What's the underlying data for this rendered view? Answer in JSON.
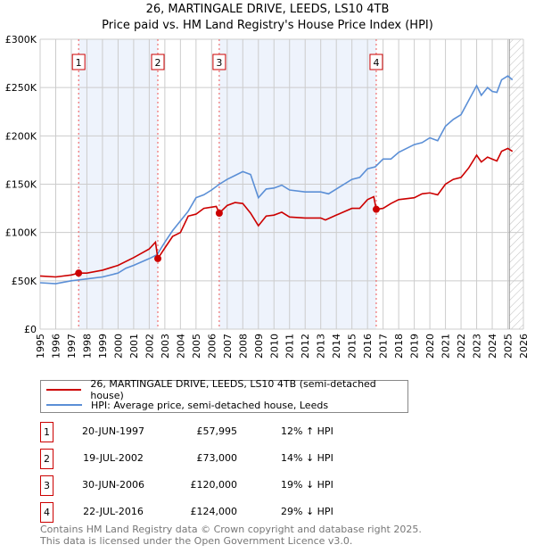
{
  "chart_data": {
    "type": "line",
    "title": "26, MARTINGALE DRIVE, LEEDS, LS10 4TB",
    "subtitle": "Price paid vs. HM Land Registry's House Price Index (HPI)",
    "xlim": [
      1995,
      2026
    ],
    "ylim": [
      0,
      300000
    ],
    "x_ticks": [
      "1995",
      "1996",
      "1997",
      "1998",
      "1999",
      "2000",
      "2001",
      "2002",
      "2003",
      "2004",
      "2005",
      "2006",
      "2007",
      "2008",
      "2009",
      "2010",
      "2011",
      "2012",
      "2013",
      "2014",
      "2015",
      "2016",
      "2017",
      "2018",
      "2019",
      "2020",
      "2021",
      "2022",
      "2023",
      "2024",
      "2025",
      "2026"
    ],
    "y_ticks": [
      {
        "v": 0,
        "label": "£0"
      },
      {
        "v": 50000,
        "label": "£50K"
      },
      {
        "v": 100000,
        "label": "£100K"
      },
      {
        "v": 150000,
        "label": "£150K"
      },
      {
        "v": 200000,
        "label": "£200K"
      },
      {
        "v": 250000,
        "label": "£250K"
      },
      {
        "v": 300000,
        "label": "£300K"
      }
    ],
    "grid": true,
    "shaded_ranges": [
      [
        1997.47,
        2002.55
      ],
      [
        2006.49,
        2016.56
      ]
    ],
    "hatched_from": 2025.1,
    "series": [
      {
        "name": "26, MARTINGALE DRIVE, LEEDS, LS10 4TB (semi-detached house)",
        "color": "#cc0000",
        "x": [
          1995,
          1996,
          1997,
          1997.47,
          1998,
          1999,
          2000,
          2001,
          2002,
          2002.4,
          2002.55,
          2003,
          2003.5,
          2004,
          2004.5,
          2005,
          2005.5,
          2006.3,
          2006.49,
          2007,
          2007.5,
          2008,
          2008.5,
          2009,
          2009.5,
          2010,
          2010.5,
          2011,
          2012,
          2013,
          2013.3,
          2014,
          2015,
          2015.5,
          2016,
          2016.4,
          2016.56,
          2017,
          2017.5,
          2018,
          2019,
          2019.5,
          2020,
          2020.5,
          2021,
          2021.5,
          2022,
          2022.5,
          2023,
          2023.3,
          2023.7,
          2024,
          2024.3,
          2024.6,
          2025,
          2025.3
        ],
        "y": [
          55000,
          54000,
          56000,
          58000,
          58000,
          61000,
          66000,
          74000,
          83000,
          90000,
          73000,
          84000,
          96000,
          100000,
          117000,
          119000,
          125000,
          127000,
          120000,
          128000,
          131000,
          130000,
          120000,
          107000,
          117000,
          118000,
          121000,
          116000,
          115000,
          115000,
          113000,
          118000,
          125000,
          125000,
          134000,
          137000,
          124000,
          125000,
          130000,
          134000,
          136000,
          140000,
          141000,
          139000,
          150000,
          155000,
          157000,
          167000,
          180000,
          173000,
          178000,
          176000,
          174000,
          184000,
          187000,
          184000
        ]
      },
      {
        "name": "HPI: Average price, semi-detached house, Leeds",
        "color": "#5b8fd6",
        "x": [
          1995,
          1996,
          1997,
          1997.5,
          1998,
          1999,
          2000,
          2000.5,
          2001,
          2002,
          2002.5,
          2003,
          2003.5,
          2004,
          2004.5,
          2005,
          2005.5,
          2006,
          2006.5,
          2007,
          2007.5,
          2008,
          2008.5,
          2009,
          2009.5,
          2010,
          2010.5,
          2011,
          2012,
          2013,
          2013.5,
          2014,
          2015,
          2015.5,
          2016,
          2016.5,
          2017,
          2017.5,
          2018,
          2019,
          2019.5,
          2020,
          2020.5,
          2021,
          2021.5,
          2022,
          2022.5,
          2023,
          2023.3,
          2023.7,
          2024,
          2024.3,
          2024.6,
          2025,
          2025.3
        ],
        "y": [
          48000,
          47000,
          50000,
          51000,
          52000,
          54000,
          58000,
          63000,
          66000,
          73000,
          77000,
          90000,
          102000,
          112000,
          122000,
          136000,
          139000,
          144000,
          150000,
          155000,
          159000,
          163000,
          160000,
          136000,
          145000,
          146000,
          149000,
          144000,
          142000,
          142000,
          140000,
          145000,
          155000,
          157000,
          166000,
          168000,
          176000,
          176000,
          183000,
          191000,
          193000,
          198000,
          195000,
          210000,
          217000,
          222000,
          237000,
          252000,
          242000,
          250000,
          246000,
          245000,
          258000,
          262000,
          258000
        ]
      }
    ],
    "sales": [
      {
        "n": "1",
        "x": 1997.47,
        "y": 57995
      },
      {
        "n": "2",
        "x": 2002.55,
        "y": 73000
      },
      {
        "n": "3",
        "x": 2006.49,
        "y": 120000
      },
      {
        "n": "4",
        "x": 2016.56,
        "y": 124000
      }
    ]
  },
  "legend": {
    "red": "26, MARTINGALE DRIVE, LEEDS, LS10 4TB (semi-detached house)",
    "blue": "HPI: Average price, semi-detached house, Leeds"
  },
  "transactions": [
    {
      "n": "1",
      "date": "20-JUN-1997",
      "price": "£57,995",
      "hpi": "12% ↑ HPI"
    },
    {
      "n": "2",
      "date": "19-JUL-2002",
      "price": "£73,000",
      "hpi": "14% ↓ HPI"
    },
    {
      "n": "3",
      "date": "30-JUN-2006",
      "price": "£120,000",
      "hpi": "19% ↓ HPI"
    },
    {
      "n": "4",
      "date": "22-JUL-2016",
      "price": "£124,000",
      "hpi": "29% ↓ HPI"
    }
  ],
  "footer": {
    "line1": "Contains HM Land Registry data © Crown copyright and database right 2025.",
    "line2": "This data is licensed under the Open Government Licence v3.0."
  }
}
